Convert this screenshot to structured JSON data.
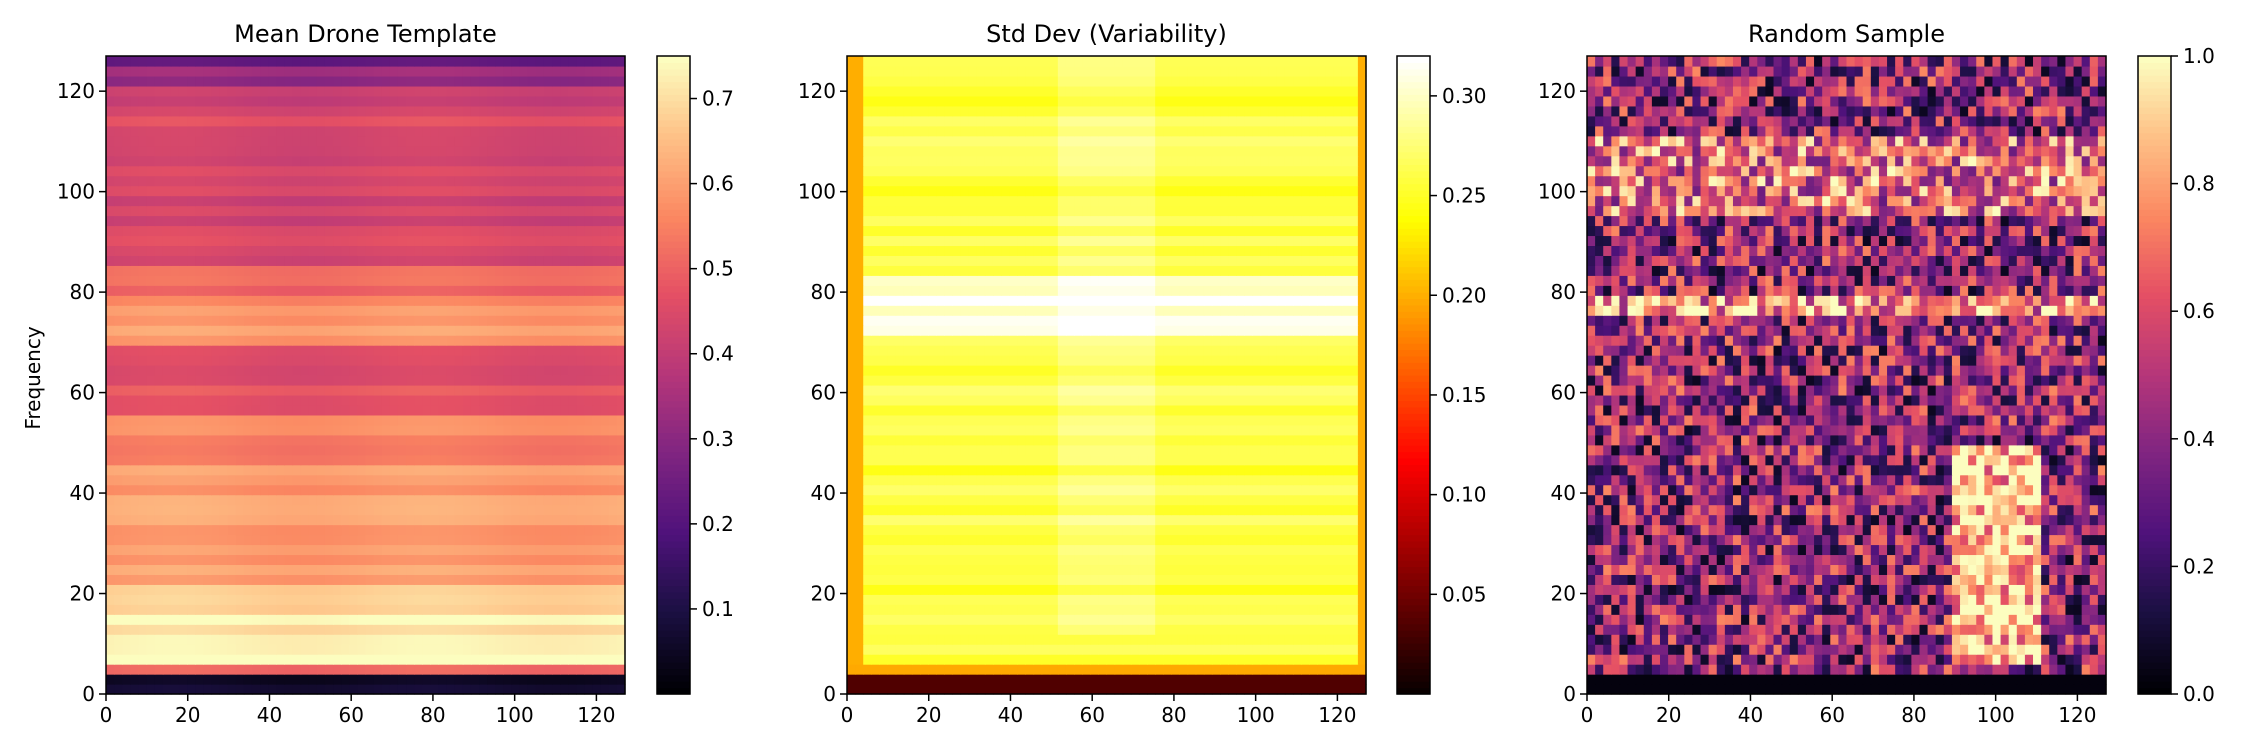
{
  "figure": {
    "ylabel": "Frequency"
  },
  "chart_data": [
    {
      "type": "heatmap",
      "title": "Mean Drone Template",
      "xlabel": "",
      "ylabel": "Frequency",
      "xlim": [
        0,
        127
      ],
      "ylim": [
        0,
        127
      ],
      "x_ticks": [
        0,
        20,
        40,
        60,
        80,
        100,
        120
      ],
      "y_ticks": [
        0,
        20,
        40,
        60,
        80,
        100,
        120
      ],
      "colormap": "magma",
      "colorbar": {
        "min": 0.0,
        "max": 0.75,
        "ticks": [
          "0.1",
          "0.2",
          "0.3",
          "0.4",
          "0.5",
          "0.6",
          "0.7"
        ],
        "tick_values": [
          0.1,
          0.2,
          0.3,
          0.4,
          0.5,
          0.6,
          0.7
        ]
      },
      "pattern": "mean"
    },
    {
      "type": "heatmap",
      "title": "Std Dev (Variability)",
      "xlabel": "",
      "ylabel": "",
      "xlim": [
        0,
        127
      ],
      "ylim": [
        0,
        127
      ],
      "x_ticks": [
        0,
        20,
        40,
        60,
        80,
        100,
        120
      ],
      "y_ticks": [
        0,
        20,
        40,
        60,
        80,
        100,
        120
      ],
      "colormap": "hot",
      "colorbar": {
        "min": 0.0,
        "max": 0.32,
        "ticks": [
          "0.05",
          "0.10",
          "0.15",
          "0.20",
          "0.25",
          "0.30"
        ],
        "tick_values": [
          0.05,
          0.1,
          0.15,
          0.2,
          0.25,
          0.3
        ]
      },
      "pattern": "std"
    },
    {
      "type": "heatmap",
      "title": "Random Sample",
      "xlabel": "",
      "ylabel": "",
      "xlim": [
        0,
        127
      ],
      "ylim": [
        0,
        127
      ],
      "x_ticks": [
        0,
        20,
        40,
        60,
        80,
        100,
        120
      ],
      "y_ticks": [
        0,
        20,
        40,
        60,
        80,
        100,
        120
      ],
      "colormap": "magma",
      "colorbar": {
        "min": 0.0,
        "max": 1.0,
        "ticks": [
          "0.0",
          "0.2",
          "0.4",
          "0.6",
          "0.8",
          "1.0"
        ],
        "tick_values": [
          0.0,
          0.2,
          0.4,
          0.6,
          0.8,
          1.0
        ]
      },
      "pattern": "sample"
    }
  ]
}
